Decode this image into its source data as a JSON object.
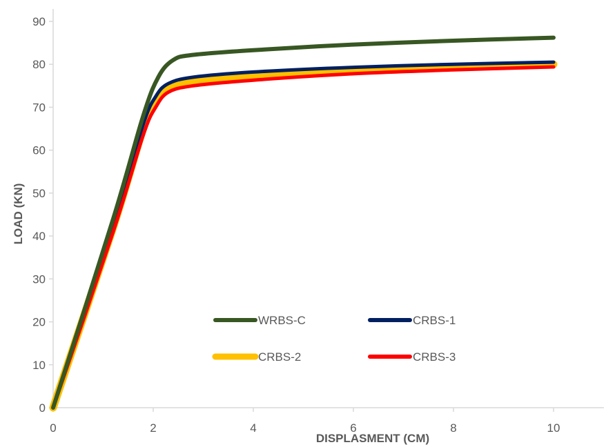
{
  "chart_data": {
    "type": "line",
    "title": "",
    "xlabel": "DISPLASMENT (CM)",
    "ylabel": "LOAD (KN)",
    "xlim": [
      0,
      10
    ],
    "ylim": [
      0,
      90
    ],
    "xticks": [
      0,
      2,
      4,
      6,
      8,
      10
    ],
    "yticks": [
      0,
      10,
      20,
      30,
      40,
      50,
      60,
      70,
      80,
      90
    ],
    "grid": false,
    "legend_position": "inside-lower-center",
    "series": [
      {
        "name": "WRBS-C",
        "color": "#385723",
        "points": [
          [
            0,
            0
          ],
          [
            1.2,
            44
          ],
          [
            1.8,
            68
          ],
          [
            2.1,
            77
          ],
          [
            2.4,
            81
          ],
          [
            2.8,
            82.2
          ],
          [
            4,
            83.3
          ],
          [
            6,
            84.6
          ],
          [
            8,
            85.5
          ],
          [
            10,
            86.2
          ]
        ]
      },
      {
        "name": "CRBS-1",
        "color": "#002060",
        "points": [
          [
            0,
            0
          ],
          [
            1.2,
            43
          ],
          [
            1.8,
            66
          ],
          [
            2.05,
            72.5
          ],
          [
            2.3,
            75.5
          ],
          [
            2.8,
            77
          ],
          [
            4,
            78.2
          ],
          [
            6,
            79.3
          ],
          [
            8,
            80
          ],
          [
            10,
            80.5
          ]
        ]
      },
      {
        "name": "CRBS-2",
        "color": "#FFC000",
        "points": [
          [
            0,
            0
          ],
          [
            1.2,
            42
          ],
          [
            1.8,
            65
          ],
          [
            2.05,
            71.5
          ],
          [
            2.3,
            74.5
          ],
          [
            2.8,
            75.8
          ],
          [
            4,
            77.2
          ],
          [
            6,
            78.6
          ],
          [
            8,
            79.4
          ],
          [
            10,
            80
          ]
        ]
      },
      {
        "name": "CRBS-3",
        "color": "#FF0000",
        "points": [
          [
            0,
            0
          ],
          [
            1.2,
            41
          ],
          [
            1.8,
            63.5
          ],
          [
            2.05,
            70
          ],
          [
            2.3,
            73.5
          ],
          [
            2.8,
            75
          ],
          [
            4,
            76.3
          ],
          [
            6,
            77.8
          ],
          [
            8,
            78.7
          ],
          [
            10,
            79.4
          ]
        ]
      }
    ]
  }
}
